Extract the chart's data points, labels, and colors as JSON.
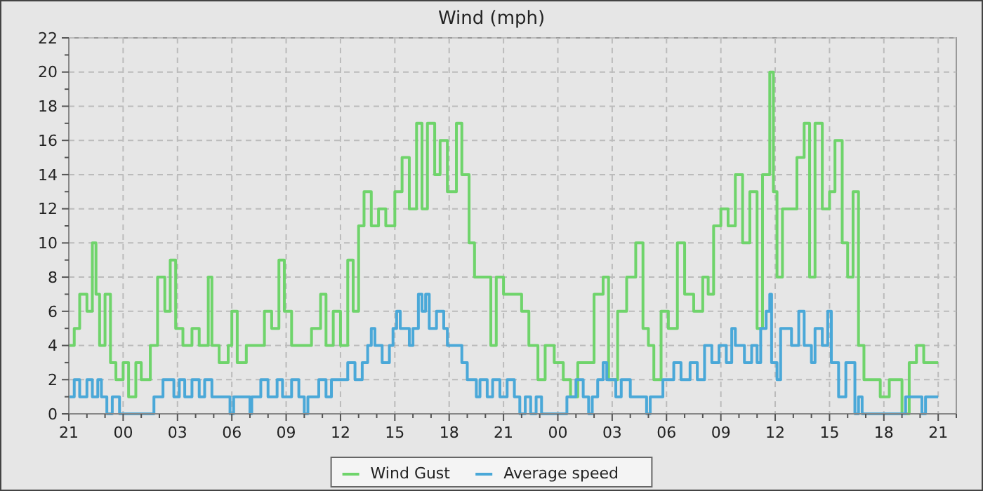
{
  "chart_data": {
    "type": "step",
    "title": "Wind (mph)",
    "xlim": [
      "2000-01-01T21:00",
      "2000-01-03T22:00"
    ],
    "ylim": [
      0,
      22
    ],
    "xticks": [
      {
        "value": "2000-01-01T21:00",
        "label": "21"
      },
      {
        "value": "2000-01-01T22:00",
        "label": null
      },
      {
        "value": "2000-01-01T23:00",
        "label": null
      },
      {
        "value": "2000-01-02T00:00",
        "label": "00"
      },
      {
        "value": "2000-01-02T01:00",
        "label": null
      },
      {
        "value": "2000-01-02T02:00",
        "label": null
      },
      {
        "value": "2000-01-02T03:00",
        "label": "03"
      },
      {
        "value": "2000-01-02T04:00",
        "label": null
      },
      {
        "value": "2000-01-02T05:00",
        "label": null
      },
      {
        "value": "2000-01-02T06:00",
        "label": "06"
      },
      {
        "value": "2000-01-02T07:00",
        "label": null
      },
      {
        "value": "2000-01-02T08:00",
        "label": null
      },
      {
        "value": "2000-01-02T09:00",
        "label": "09"
      },
      {
        "value": "2000-01-02T10:00",
        "label": null
      },
      {
        "value": "2000-01-02T11:00",
        "label": null
      },
      {
        "value": "2000-01-02T12:00",
        "label": "12"
      },
      {
        "value": "2000-01-02T13:00",
        "label": null
      },
      {
        "value": "2000-01-02T14:00",
        "label": null
      },
      {
        "value": "2000-01-02T15:00",
        "label": "15"
      },
      {
        "value": "2000-01-02T16:00",
        "label": null
      },
      {
        "value": "2000-01-02T17:00",
        "label": null
      },
      {
        "value": "2000-01-02T18:00",
        "label": "18"
      },
      {
        "value": "2000-01-02T19:00",
        "label": null
      },
      {
        "value": "2000-01-02T20:00",
        "label": null
      },
      {
        "value": "2000-01-02T21:00",
        "label": "21"
      },
      {
        "value": "2000-01-02T22:00",
        "label": null
      },
      {
        "value": "2000-01-02T23:00",
        "label": null
      },
      {
        "value": "2000-01-03T00:00",
        "label": "00"
      },
      {
        "value": "2000-01-03T01:00",
        "label": null
      },
      {
        "value": "2000-01-03T02:00",
        "label": null
      },
      {
        "value": "2000-01-03T03:00",
        "label": "03"
      },
      {
        "value": "2000-01-03T04:00",
        "label": null
      },
      {
        "value": "2000-01-03T05:00",
        "label": null
      },
      {
        "value": "2000-01-03T06:00",
        "label": "06"
      },
      {
        "value": "2000-01-03T07:00",
        "label": null
      },
      {
        "value": "2000-01-03T08:00",
        "label": null
      },
      {
        "value": "2000-01-03T09:00",
        "label": "09"
      },
      {
        "value": "2000-01-03T10:00",
        "label": null
      },
      {
        "value": "2000-01-03T11:00",
        "label": null
      },
      {
        "value": "2000-01-03T12:00",
        "label": "12"
      },
      {
        "value": "2000-01-03T13:00",
        "label": null
      },
      {
        "value": "2000-01-03T14:00",
        "label": null
      },
      {
        "value": "2000-01-03T15:00",
        "label": "15"
      },
      {
        "value": "2000-01-03T16:00",
        "label": null
      },
      {
        "value": "2000-01-03T17:00",
        "label": null
      },
      {
        "value": "2000-01-03T18:00",
        "label": "18"
      },
      {
        "value": "2000-01-03T19:00",
        "label": null
      },
      {
        "value": "2000-01-03T20:00",
        "label": null
      },
      {
        "value": "2000-01-03T21:00",
        "label": "21"
      },
      {
        "value": "2000-01-03T22:00",
        "label": null
      }
    ],
    "yticks": [
      0,
      {
        "value": 1,
        "label": null
      },
      2,
      {
        "value": 3,
        "label": null
      },
      4,
      {
        "value": 5,
        "label": null
      },
      6,
      {
        "value": 7,
        "label": null
      },
      8,
      {
        "value": 9,
        "label": null
      },
      10,
      {
        "value": 11,
        "label": null
      },
      12,
      {
        "value": 13,
        "label": null
      },
      14,
      {
        "value": 15,
        "label": null
      },
      16,
      {
        "value": 17,
        "label": null
      },
      18,
      {
        "value": 19,
        "label": null
      },
      20,
      {
        "value": 21,
        "label": null
      },
      22
    ],
    "grid": true,
    "legend": "bottom",
    "marker": "none",
    "line_style": "solid",
    "series": [
      {
        "name": "Wind Gust",
        "color": "#6fd46b",
        "x": [
          "2000-01-01T21:00",
          "2000-01-01T21:18",
          "2000-01-01T21:36",
          "2000-01-01T22:00",
          "2000-01-01T22:18",
          "2000-01-01T22:30",
          "2000-01-01T22:42",
          "2000-01-01T23:00",
          "2000-01-01T23:18",
          "2000-01-01T23:36",
          "2000-01-02T00:00",
          "2000-01-02T00:18",
          "2000-01-02T00:42",
          "2000-01-02T01:00",
          "2000-01-02T01:30",
          "2000-01-02T01:54",
          "2000-01-02T02:18",
          "2000-01-02T02:36",
          "2000-01-02T02:54",
          "2000-01-02T03:18",
          "2000-01-02T03:48",
          "2000-01-02T04:12",
          "2000-01-02T04:42",
          "2000-01-02T04:54",
          "2000-01-02T05:18",
          "2000-01-02T05:48",
          "2000-01-02T06:00",
          "2000-01-02T06:18",
          "2000-01-02T06:48",
          "2000-01-02T07:18",
          "2000-01-02T07:48",
          "2000-01-02T08:12",
          "2000-01-02T08:36",
          "2000-01-02T08:54",
          "2000-01-02T09:18",
          "2000-01-02T09:48",
          "2000-01-02T10:24",
          "2000-01-02T10:54",
          "2000-01-02T11:12",
          "2000-01-02T11:36",
          "2000-01-02T12:00",
          "2000-01-02T12:24",
          "2000-01-02T12:42",
          "2000-01-02T13:00",
          "2000-01-02T13:18",
          "2000-01-02T13:42",
          "2000-01-02T14:06",
          "2000-01-02T14:30",
          "2000-01-02T15:00",
          "2000-01-02T15:24",
          "2000-01-02T15:48",
          "2000-01-02T16:12",
          "2000-01-02T16:30",
          "2000-01-02T16:48",
          "2000-01-02T17:12",
          "2000-01-02T17:30",
          "2000-01-02T17:54",
          "2000-01-02T18:24",
          "2000-01-02T18:42",
          "2000-01-02T19:06",
          "2000-01-02T19:24",
          "2000-01-02T19:48",
          "2000-01-02T20:18",
          "2000-01-02T20:36",
          "2000-01-02T21:00",
          "2000-01-02T21:30",
          "2000-01-02T22:00",
          "2000-01-02T22:24",
          "2000-01-02T22:54",
          "2000-01-02T23:18",
          "2000-01-02T23:48",
          "2000-01-03T00:18",
          "2000-01-03T00:42",
          "2000-01-03T01:06",
          "2000-01-03T01:36",
          "2000-01-03T02:00",
          "2000-01-03T02:30",
          "2000-01-03T02:48",
          "2000-01-03T03:18",
          "2000-01-03T03:48",
          "2000-01-03T04:18",
          "2000-01-03T04:42",
          "2000-01-03T05:00",
          "2000-01-03T05:18",
          "2000-01-03T05:42",
          "2000-01-03T06:06",
          "2000-01-03T06:36",
          "2000-01-03T07:00",
          "2000-01-03T07:30",
          "2000-01-03T08:00",
          "2000-01-03T08:18",
          "2000-01-03T08:36",
          "2000-01-03T09:00",
          "2000-01-03T09:24",
          "2000-01-03T09:48",
          "2000-01-03T10:12",
          "2000-01-03T10:36",
          "2000-01-03T11:00",
          "2000-01-03T11:18",
          "2000-01-03T11:42",
          "2000-01-03T11:54",
          "2000-01-03T12:06",
          "2000-01-03T12:24",
          "2000-01-03T12:48",
          "2000-01-03T13:12",
          "2000-01-03T13:36",
          "2000-01-03T13:54",
          "2000-01-03T14:12",
          "2000-01-03T14:36",
          "2000-01-03T15:00",
          "2000-01-03T15:18",
          "2000-01-03T15:42",
          "2000-01-03T16:00",
          "2000-01-03T16:18",
          "2000-01-03T16:36",
          "2000-01-03T16:54",
          "2000-01-03T17:18",
          "2000-01-03T17:48",
          "2000-01-03T18:18",
          "2000-01-03T19:00",
          "2000-01-03T19:24",
          "2000-01-03T19:48",
          "2000-01-03T20:12",
          "2000-01-03T20:36",
          "2000-01-03T21:00"
        ],
        "values": [
          4,
          5,
          7,
          6,
          10,
          7,
          4,
          7,
          3,
          2,
          3,
          1,
          3,
          2,
          4,
          8,
          6,
          9,
          5,
          4,
          5,
          4,
          8,
          4,
          3,
          4,
          6,
          3,
          4,
          4,
          6,
          5,
          9,
          6,
          4,
          4,
          5,
          7,
          4,
          6,
          4,
          9,
          6,
          11,
          13,
          11,
          12,
          11,
          13,
          15,
          12,
          17,
          12,
          17,
          14,
          16,
          13,
          17,
          14,
          10,
          8,
          8,
          4,
          8,
          7,
          7,
          6,
          4,
          2,
          4,
          3,
          2,
          1,
          3,
          3,
          7,
          8,
          2,
          6,
          8,
          10,
          5,
          4,
          2,
          6,
          5,
          10,
          7,
          6,
          8,
          7,
          11,
          12,
          11,
          14,
          10,
          13,
          5,
          14,
          20,
          13,
          8,
          12,
          12,
          15,
          17,
          8,
          17,
          12,
          13,
          16,
          10,
          8,
          13,
          4,
          2,
          2,
          1,
          2,
          0,
          3,
          4,
          3,
          3,
          3
        ]
      },
      {
        "name": "Average speed",
        "color": "#4aa8d8",
        "x": [
          "2000-01-01T21:00",
          "2000-01-01T21:18",
          "2000-01-01T21:36",
          "2000-01-01T22:00",
          "2000-01-01T22:18",
          "2000-01-01T22:36",
          "2000-01-01T22:48",
          "2000-01-01T23:06",
          "2000-01-01T23:24",
          "2000-01-01T23:48",
          "2000-01-02T01:42",
          "2000-01-02T02:12",
          "2000-01-02T02:48",
          "2000-01-02T03:06",
          "2000-01-02T03:24",
          "2000-01-02T03:48",
          "2000-01-02T04:12",
          "2000-01-02T04:30",
          "2000-01-02T04:54",
          "2000-01-02T05:54",
          "2000-01-02T06:06",
          "2000-01-02T07:00",
          "2000-01-02T07:06",
          "2000-01-02T07:36",
          "2000-01-02T08:00",
          "2000-01-02T08:30",
          "2000-01-02T08:48",
          "2000-01-02T09:18",
          "2000-01-02T09:42",
          "2000-01-02T10:00",
          "2000-01-02T10:12",
          "2000-01-02T10:48",
          "2000-01-02T11:12",
          "2000-01-02T11:30",
          "2000-01-02T12:24",
          "2000-01-02T12:48",
          "2000-01-02T13:12",
          "2000-01-02T13:30",
          "2000-01-02T13:42",
          "2000-01-02T13:54",
          "2000-01-02T14:18",
          "2000-01-02T14:42",
          "2000-01-02T14:54",
          "2000-01-02T15:06",
          "2000-01-02T15:18",
          "2000-01-02T15:48",
          "2000-01-02T16:00",
          "2000-01-02T16:18",
          "2000-01-02T16:30",
          "2000-01-02T16:42",
          "2000-01-02T16:54",
          "2000-01-02T17:18",
          "2000-01-02T17:42",
          "2000-01-02T17:54",
          "2000-01-02T18:42",
          "2000-01-02T19:00",
          "2000-01-02T19:30",
          "2000-01-02T19:42",
          "2000-01-02T20:06",
          "2000-01-02T20:24",
          "2000-01-02T20:48",
          "2000-01-02T21:12",
          "2000-01-02T21:36",
          "2000-01-02T21:54",
          "2000-01-02T22:12",
          "2000-01-02T22:30",
          "2000-01-02T22:48",
          "2000-01-02T23:06",
          "2000-01-03T00:30",
          "2000-01-03T01:00",
          "2000-01-03T01:24",
          "2000-01-03T01:42",
          "2000-01-03T01:54",
          "2000-01-03T02:12",
          "2000-01-03T02:30",
          "2000-01-03T02:42",
          "2000-01-03T03:12",
          "2000-01-03T03:30",
          "2000-01-03T04:00",
          "2000-01-03T04:54",
          "2000-01-03T05:06",
          "2000-01-03T05:48",
          "2000-01-03T06:24",
          "2000-01-03T06:48",
          "2000-01-03T07:18",
          "2000-01-03T07:42",
          "2000-01-03T08:06",
          "2000-01-03T08:30",
          "2000-01-03T08:54",
          "2000-01-03T09:18",
          "2000-01-03T09:36",
          "2000-01-03T09:48",
          "2000-01-03T10:18",
          "2000-01-03T10:42",
          "2000-01-03T11:00",
          "2000-01-03T11:12",
          "2000-01-03T11:30",
          "2000-01-03T11:42",
          "2000-01-03T11:48",
          "2000-01-03T12:06",
          "2000-01-03T12:18",
          "2000-01-03T12:54",
          "2000-01-03T13:18",
          "2000-01-03T13:36",
          "2000-01-03T14:00",
          "2000-01-03T14:12",
          "2000-01-03T14:36",
          "2000-01-03T14:54",
          "2000-01-03T15:06",
          "2000-01-03T15:30",
          "2000-01-03T15:54",
          "2000-01-03T16:24",
          "2000-01-03T16:36",
          "2000-01-03T16:48",
          "2000-01-03T19:12",
          "2000-01-03T20:06",
          "2000-01-03T20:18",
          "2000-01-03T21:00"
        ],
        "values": [
          1,
          2,
          1,
          2,
          1,
          2,
          1,
          0,
          1,
          0,
          1,
          2,
          1,
          2,
          1,
          2,
          1,
          2,
          1,
          0,
          1,
          0,
          1,
          2,
          1,
          2,
          1,
          2,
          1,
          0,
          1,
          2,
          1,
          2,
          3,
          2,
          3,
          4,
          5,
          4,
          3,
          4,
          5,
          6,
          5,
          4,
          5,
          7,
          6,
          7,
          5,
          6,
          5,
          4,
          3,
          2,
          1,
          2,
          1,
          2,
          1,
          2,
          1,
          0,
          1,
          0,
          1,
          0,
          1,
          2,
          1,
          0,
          1,
          2,
          3,
          2,
          1,
          2,
          1,
          0,
          1,
          2,
          3,
          2,
          3,
          2,
          4,
          3,
          4,
          3,
          5,
          4,
          3,
          4,
          3,
          5,
          6,
          7,
          3,
          2,
          5,
          4,
          6,
          4,
          3,
          5,
          4,
          6,
          3,
          1,
          3,
          0,
          1,
          0,
          1,
          0,
          1,
          1
        ]
      }
    ]
  }
}
